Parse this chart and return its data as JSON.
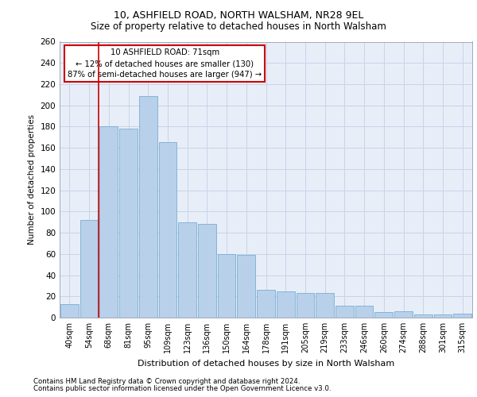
{
  "title1": "10, ASHFIELD ROAD, NORTH WALSHAM, NR28 9EL",
  "title2": "Size of property relative to detached houses in North Walsham",
  "xlabel": "Distribution of detached houses by size in North Walsham",
  "ylabel": "Number of detached properties",
  "bar_labels": [
    "40sqm",
    "54sqm",
    "68sqm",
    "81sqm",
    "95sqm",
    "109sqm",
    "123sqm",
    "136sqm",
    "150sqm",
    "164sqm",
    "178sqm",
    "191sqm",
    "205sqm",
    "219sqm",
    "233sqm",
    "246sqm",
    "260sqm",
    "274sqm",
    "288sqm",
    "301sqm",
    "315sqm"
  ],
  "bar_heights": [
    13,
    92,
    180,
    178,
    209,
    165,
    90,
    88,
    60,
    59,
    26,
    25,
    23,
    23,
    11,
    11,
    5,
    6,
    3,
    3,
    4
  ],
  "bar_color": "#b8d0ea",
  "bar_edge_color": "#7aadd4",
  "annotation_text_line1": "10 ASHFIELD ROAD: 71sqm",
  "annotation_text_line2": "← 12% of detached houses are smaller (130)",
  "annotation_text_line3": "87% of semi-detached houses are larger (947) →",
  "annotation_box_color": "#ffffff",
  "annotation_box_edge_color": "#cc0000",
  "red_line_color": "#cc0000",
  "ylim": [
    0,
    260
  ],
  "yticks": [
    0,
    20,
    40,
    60,
    80,
    100,
    120,
    140,
    160,
    180,
    200,
    220,
    240,
    260
  ],
  "grid_color": "#c8d4e8",
  "background_color": "#e8eef8",
  "footer1": "Contains HM Land Registry data © Crown copyright and database right 2024.",
  "footer2": "Contains public sector information licensed under the Open Government Licence v3.0."
}
